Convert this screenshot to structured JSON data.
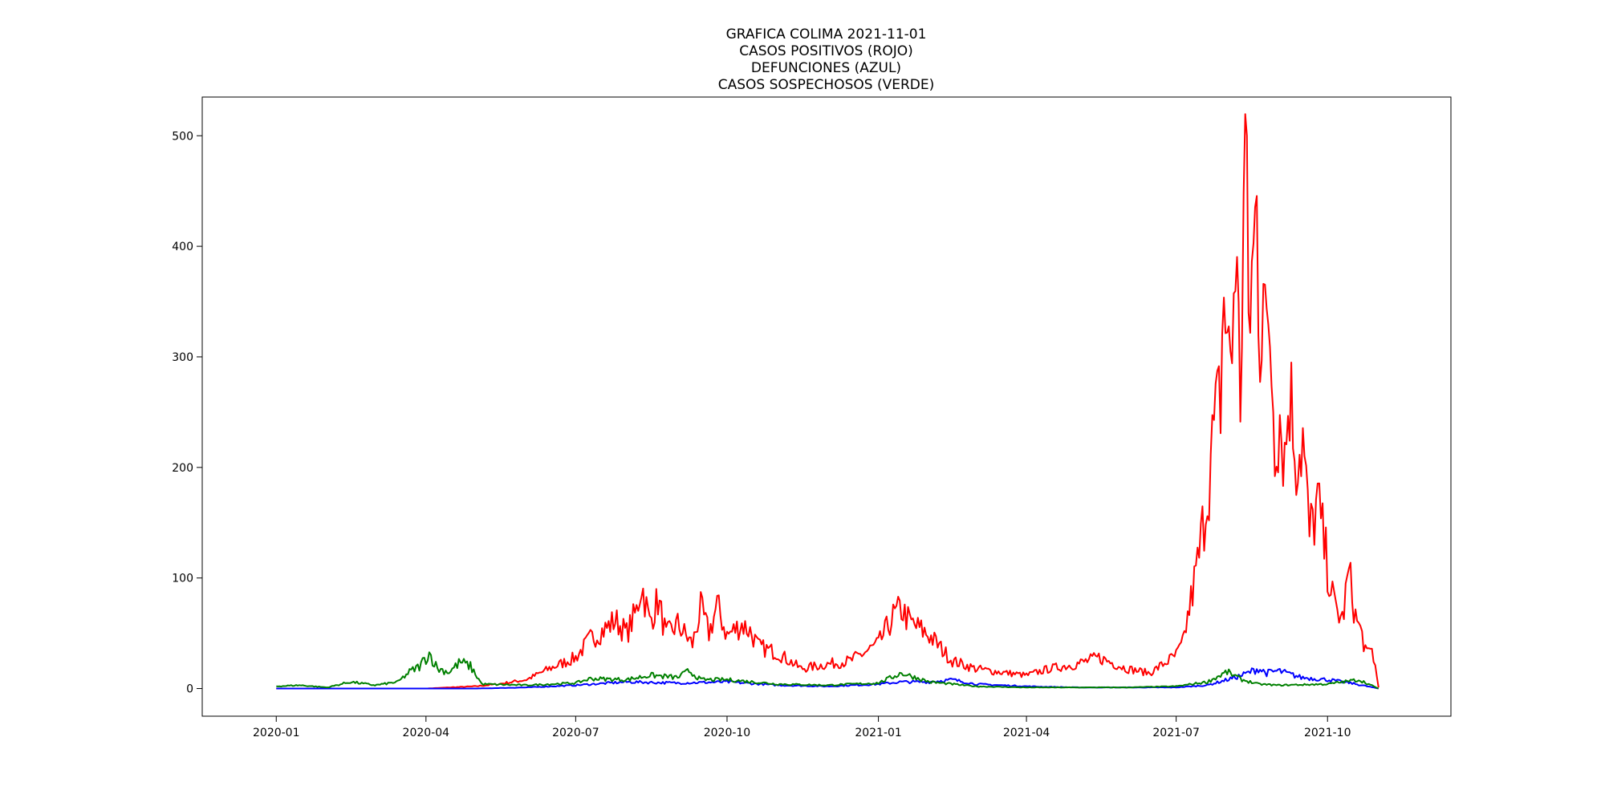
{
  "chart_data": {
    "type": "line",
    "title_lines": [
      "GRAFICA COLIMA 2021-11-01",
      "CASOS POSITIVOS (ROJO)",
      "DEFUNCIONES (AZUL)",
      "CASOS SOSPECHOSOS (VERDE)"
    ],
    "xlabel": "",
    "ylabel": "",
    "x_ticks": [
      "2020-01",
      "2020-04",
      "2020-07",
      "2020-10",
      "2021-01",
      "2021-04",
      "2021-07",
      "2021-10"
    ],
    "y_ticks": [
      "0",
      "100",
      "200",
      "300",
      "400",
      "500"
    ],
    "xlim": [
      "2019-11-17",
      "2021-12-15"
    ],
    "ylim": [
      -25,
      535
    ],
    "grid": false,
    "series": [
      {
        "color": "#ff0000",
        "points": [
          [
            "2020-01-01",
            0
          ],
          [
            "2020-03-15",
            0
          ],
          [
            "2020-04-01",
            0
          ],
          [
            "2020-04-15",
            1
          ],
          [
            "2020-05-01",
            2
          ],
          [
            "2020-05-15",
            4
          ],
          [
            "2020-06-01",
            8
          ],
          [
            "2020-06-15",
            18
          ],
          [
            "2020-07-01",
            28
          ],
          [
            "2020-07-10",
            45
          ],
          [
            "2020-07-20",
            55
          ],
          [
            "2020-07-25",
            62
          ],
          [
            "2020-08-01",
            50
          ],
          [
            "2020-08-07",
            70
          ],
          [
            "2020-08-10",
            95
          ],
          [
            "2020-08-15",
            60
          ],
          [
            "2020-08-20",
            80
          ],
          [
            "2020-08-25",
            48
          ],
          [
            "2020-09-01",
            58
          ],
          [
            "2020-09-10",
            40
          ],
          [
            "2020-09-15",
            72
          ],
          [
            "2020-09-20",
            50
          ],
          [
            "2020-09-25",
            75
          ],
          [
            "2020-10-01",
            48
          ],
          [
            "2020-10-10",
            58
          ],
          [
            "2020-10-15",
            52
          ],
          [
            "2020-10-20",
            38
          ],
          [
            "2020-11-01",
            32
          ],
          [
            "2020-11-15",
            18
          ],
          [
            "2020-12-01",
            22
          ],
          [
            "2020-12-15",
            25
          ],
          [
            "2021-01-01",
            40
          ],
          [
            "2021-01-10",
            65
          ],
          [
            "2021-01-15",
            72
          ],
          [
            "2021-01-20",
            60
          ],
          [
            "2021-02-01",
            48
          ],
          [
            "2021-02-15",
            25
          ],
          [
            "2021-03-01",
            18
          ],
          [
            "2021-03-15",
            15
          ],
          [
            "2021-04-01",
            12
          ],
          [
            "2021-04-15",
            18
          ],
          [
            "2021-05-01",
            22
          ],
          [
            "2021-05-15",
            28
          ],
          [
            "2021-06-01",
            18
          ],
          [
            "2021-06-15",
            14
          ],
          [
            "2021-07-01",
            30
          ],
          [
            "2021-07-05",
            40
          ],
          [
            "2021-07-10",
            80
          ],
          [
            "2021-07-15",
            120
          ],
          [
            "2021-07-20",
            180
          ],
          [
            "2021-07-24",
            230
          ],
          [
            "2021-07-28",
            265
          ],
          [
            "2021-07-30",
            360
          ],
          [
            "2021-08-02",
            295
          ],
          [
            "2021-08-04",
            310
          ],
          [
            "2021-08-06",
            405
          ],
          [
            "2021-08-09",
            265
          ],
          [
            "2021-08-12",
            508
          ],
          [
            "2021-08-14",
            330
          ],
          [
            "2021-08-17",
            390
          ],
          [
            "2021-08-19",
            432
          ],
          [
            "2021-08-21",
            318
          ],
          [
            "2021-08-23",
            395
          ],
          [
            "2021-08-25",
            295
          ],
          [
            "2021-08-27",
            325
          ],
          [
            "2021-08-30",
            230
          ],
          [
            "2021-09-02",
            250
          ],
          [
            "2021-09-05",
            210
          ],
          [
            "2021-09-08",
            272
          ],
          [
            "2021-09-12",
            210
          ],
          [
            "2021-09-16",
            225
          ],
          [
            "2021-09-20",
            138
          ],
          [
            "2021-09-25",
            168
          ],
          [
            "2021-10-01",
            110
          ],
          [
            "2021-10-05",
            75
          ],
          [
            "2021-10-10",
            62
          ],
          [
            "2021-10-14",
            105
          ],
          [
            "2021-10-18",
            65
          ],
          [
            "2021-10-22",
            48
          ],
          [
            "2021-10-25",
            30
          ],
          [
            "2021-10-28",
            35
          ],
          [
            "2021-10-30",
            20
          ],
          [
            "2021-11-01",
            1
          ]
        ]
      },
      {
        "color": "#0000ff",
        "points": [
          [
            "2020-01-01",
            0
          ],
          [
            "2020-05-01",
            0
          ],
          [
            "2020-06-01",
            1
          ],
          [
            "2020-07-01",
            3
          ],
          [
            "2020-08-01",
            6
          ],
          [
            "2020-09-01",
            5
          ],
          [
            "2020-10-01",
            6
          ],
          [
            "2020-11-01",
            3
          ],
          [
            "2020-12-01",
            2
          ],
          [
            "2021-01-01",
            4
          ],
          [
            "2021-01-15",
            6
          ],
          [
            "2021-02-01",
            6
          ],
          [
            "2021-02-15",
            8
          ],
          [
            "2021-03-01",
            4
          ],
          [
            "2021-04-01",
            2
          ],
          [
            "2021-05-01",
            1
          ],
          [
            "2021-06-01",
            1
          ],
          [
            "2021-07-01",
            1
          ],
          [
            "2021-07-20",
            3
          ],
          [
            "2021-08-01",
            8
          ],
          [
            "2021-08-10",
            12
          ],
          [
            "2021-08-20",
            18
          ],
          [
            "2021-08-25",
            14
          ],
          [
            "2021-09-01",
            16
          ],
          [
            "2021-09-15",
            10
          ],
          [
            "2021-10-01",
            8
          ],
          [
            "2021-10-15",
            5
          ],
          [
            "2021-11-01",
            0
          ]
        ]
      },
      {
        "color": "#008000",
        "points": [
          [
            "2020-01-01",
            2
          ],
          [
            "2020-01-15",
            3
          ],
          [
            "2020-02-01",
            1
          ],
          [
            "2020-02-15",
            6
          ],
          [
            "2020-03-01",
            3
          ],
          [
            "2020-03-15",
            6
          ],
          [
            "2020-03-22",
            15
          ],
          [
            "2020-03-28",
            20
          ],
          [
            "2020-04-03",
            32
          ],
          [
            "2020-04-08",
            18
          ],
          [
            "2020-04-15",
            15
          ],
          [
            "2020-04-22",
            24
          ],
          [
            "2020-04-28",
            20
          ],
          [
            "2020-05-05",
            4
          ],
          [
            "2020-06-01",
            3
          ],
          [
            "2020-07-01",
            5
          ],
          [
            "2020-07-10",
            9
          ],
          [
            "2020-08-01",
            8
          ],
          [
            "2020-08-15",
            12
          ],
          [
            "2020-09-01",
            10
          ],
          [
            "2020-09-08",
            16
          ],
          [
            "2020-09-15",
            8
          ],
          [
            "2020-10-01",
            8
          ],
          [
            "2020-11-01",
            4
          ],
          [
            "2020-12-01",
            3
          ],
          [
            "2021-01-01",
            5
          ],
          [
            "2021-01-15",
            14
          ],
          [
            "2021-02-01",
            6
          ],
          [
            "2021-03-01",
            2
          ],
          [
            "2021-04-01",
            1
          ],
          [
            "2021-05-01",
            1
          ],
          [
            "2021-06-01",
            1
          ],
          [
            "2021-07-01",
            2
          ],
          [
            "2021-07-20",
            6
          ],
          [
            "2021-08-01",
            15
          ],
          [
            "2021-08-10",
            8
          ],
          [
            "2021-08-20",
            4
          ],
          [
            "2021-09-01",
            3
          ],
          [
            "2021-10-01",
            4
          ],
          [
            "2021-10-20",
            8
          ],
          [
            "2021-11-01",
            0
          ]
        ]
      }
    ]
  }
}
